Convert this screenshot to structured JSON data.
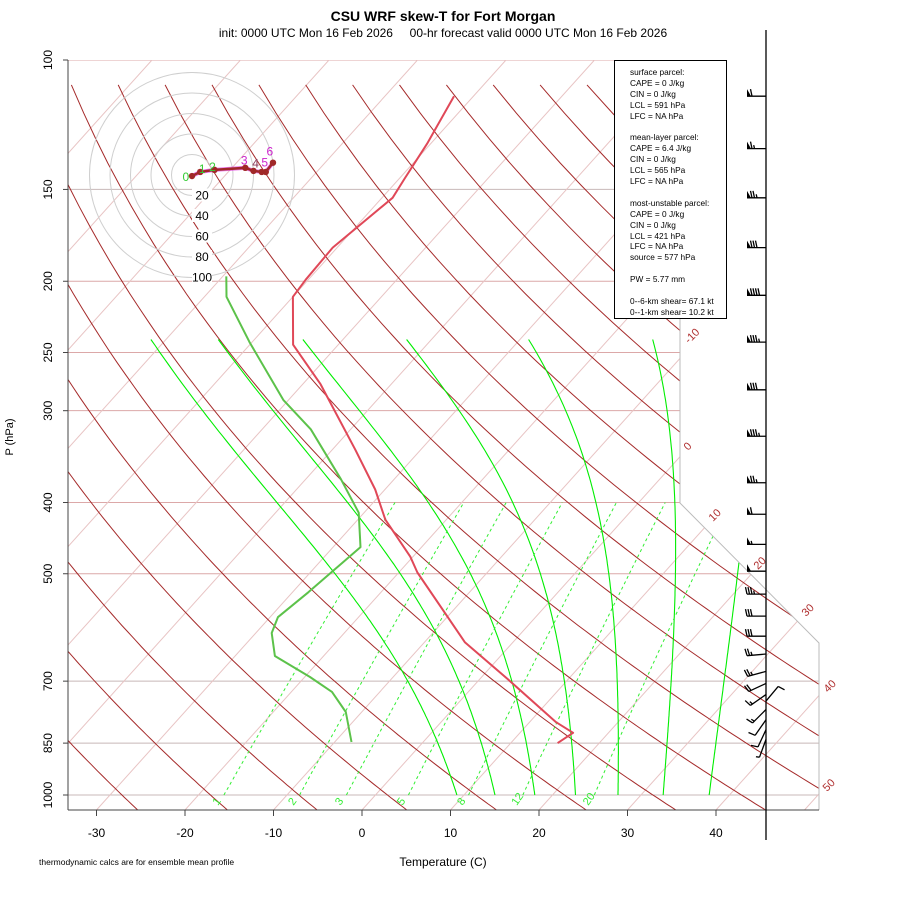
{
  "chart_data": {
    "type": "skew-t",
    "title": "CSU WRF skew-T for Fort Morgan",
    "subtitle": "init: 0000 UTC Mon 16 Feb 2026     00-hr forecast valid 0000 UTC Mon 16 Feb 2026",
    "xlabel": "Temperature (C)",
    "ylabel": "P (hPa)",
    "x_ticks": [
      -30,
      -20,
      -10,
      0,
      10,
      20,
      30,
      40
    ],
    "pressure_ticks": [
      100,
      150,
      200,
      250,
      300,
      400,
      500,
      700,
      850,
      1000
    ],
    "ylim_hpa": [
      1050,
      100
    ],
    "isotherm_labels": [
      -10,
      0,
      10,
      20,
      30,
      40,
      50
    ],
    "mixing_ratio_labels": [
      1,
      2,
      3,
      5,
      8,
      12,
      20
    ],
    "temperature": {
      "pressure": [
        850,
        823,
        796,
        696,
        620,
        498,
        474,
        422,
        384,
        339,
        276,
        244,
        210,
        199,
        180,
        154,
        145,
        130,
        112
      ],
      "values": [
        15.3,
        16.0,
        13.0,
        3.2,
        -5.4,
        -17.9,
        -20.3,
        -26.9,
        -31.1,
        -37.4,
        -48.0,
        -55.1,
        -60.0,
        -60.3,
        -60.5,
        -58.8,
        -59.4,
        -60.4,
        -62.2
      ]
    },
    "dewpoint": {
      "pressure": [
        847,
        771,
        724,
        691,
        647,
        602,
        573,
        530,
        460,
        413,
        372,
        318,
        290,
        242,
        210,
        197
      ],
      "values": [
        -8.1,
        -11.8,
        -15.4,
        -19.4,
        -25.5,
        -28.2,
        -29.1,
        -28.2,
        -26.9,
        -30.6,
        -36.0,
        -44.5,
        -50.6,
        -60.3,
        -67.5,
        -69.6
      ]
    },
    "wind_barbs": [
      {
        "pressure": 112,
        "direction": 270,
        "speed": 60
      },
      {
        "pressure": 132,
        "direction": 270,
        "speed": 65
      },
      {
        "pressure": 154,
        "direction": 270,
        "speed": 75
      },
      {
        "pressure": 180,
        "direction": 270,
        "speed": 80
      },
      {
        "pressure": 209,
        "direction": 270,
        "speed": 90
      },
      {
        "pressure": 242,
        "direction": 270,
        "speed": 85
      },
      {
        "pressure": 281,
        "direction": 270,
        "speed": 80
      },
      {
        "pressure": 325,
        "direction": 270,
        "speed": 85
      },
      {
        "pressure": 376,
        "direction": 270,
        "speed": 75
      },
      {
        "pressure": 415,
        "direction": 270,
        "speed": 60
      },
      {
        "pressure": 456,
        "direction": 270,
        "speed": 55
      },
      {
        "pressure": 496,
        "direction": 270,
        "speed": 50
      },
      {
        "pressure": 533,
        "direction": 270,
        "speed": 35
      },
      {
        "pressure": 571,
        "direction": 270,
        "speed": 30
      },
      {
        "pressure": 608,
        "direction": 270,
        "speed": 30
      },
      {
        "pressure": 643,
        "direction": 265,
        "speed": 25
      },
      {
        "pressure": 679,
        "direction": 255,
        "speed": 25
      },
      {
        "pressure": 705,
        "direction": 245,
        "speed": 20
      },
      {
        "pressure": 730,
        "direction": 235,
        "speed": 15
      },
      {
        "pressure": 745,
        "direction": 40,
        "speed": 10
      },
      {
        "pressure": 765,
        "direction": 225,
        "speed": 15
      },
      {
        "pressure": 790,
        "direction": 215,
        "speed": 10
      },
      {
        "pressure": 815,
        "direction": 205,
        "speed": 10
      },
      {
        "pressure": 840,
        "direction": 200,
        "speed": 5
      }
    ],
    "hodograph": {
      "ring_labels": [
        20,
        40,
        60,
        80,
        100
      ],
      "points": [
        [
          0,
          -1
        ],
        [
          8,
          3
        ],
        [
          22,
          5
        ],
        [
          52,
          7
        ],
        [
          60,
          4
        ],
        [
          68,
          3
        ],
        [
          72,
          3
        ],
        [
          79,
          12
        ]
      ],
      "height_labels": [
        {
          "text": "0",
          "u": -6,
          "v": -2,
          "color": "#33cc33"
        },
        {
          "text": "1",
          "u": 10,
          "v": 6,
          "color": "#33cc33"
        },
        {
          "text": "2",
          "u": 20,
          "v": 8,
          "color": "#33cc33"
        },
        {
          "text": "3",
          "u": 51,
          "v": 14,
          "color": "#cc22cc"
        },
        {
          "text": "4",
          "u": 62,
          "v": 11,
          "color": "#8a3a5a"
        },
        {
          "text": "5",
          "u": 71,
          "v": 12,
          "color": "#cc22cc"
        },
        {
          "text": "6",
          "u": 76,
          "v": 23,
          "color": "#cc22cc"
        }
      ]
    },
    "colors": {
      "temperature": "#e04858",
      "dewpoint": "#5cc24a",
      "dry_adiabat": "#a52a2a",
      "moist_adiabat": "#00ee00",
      "mixing_ratio": "#33ee33",
      "isotherm": "#e8c4c4",
      "isobar": "#dca8a8",
      "hodograph": "#a02828"
    }
  },
  "stats": {
    "lines": [
      "surface parcel:",
      "CAPE = 0 J/kg",
      "CIN = 0 J/kg",
      "LCL = 591 hPa",
      "LFC = NA hPa",
      "",
      "mean-layer parcel:",
      "CAPE = 6.4 J/kg",
      "CIN = 0 J/kg",
      "LCL = 565 hPa",
      "LFC = NA hPa",
      "",
      "most-unstable parcel:",
      "CAPE = 0 J/kg",
      "CIN = 0 J/kg",
      "LCL = 421 hPa",
      "LFC = NA hPa",
      "source = 577 hPa",
      "",
      "PW =  5.77 mm",
      "",
      "0--6-km shear= 67.1 kt",
      "0--1-km shear= 10.2 kt"
    ]
  },
  "footnote": "thermodynamic calcs are for ensemble mean profile"
}
